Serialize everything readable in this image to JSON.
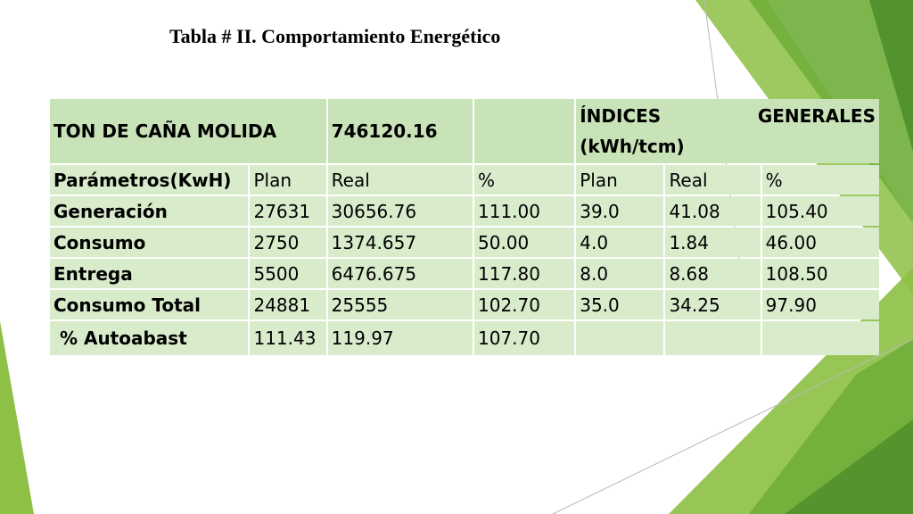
{
  "slide": {
    "title": "Tabla # II. Comportamiento Energético",
    "colors": {
      "accent_light": "#8dc044",
      "accent_mid": "#6fae3a",
      "accent_dark": "#4f8f2a",
      "cell_header": "#c8e3b7",
      "cell_body": "#d8eccc"
    }
  },
  "table": {
    "header": {
      "ton_label": "TON DE CAÑA MOLIDA",
      "ton_value": "746120.16",
      "empty": "",
      "indices_word1": "ÍNDICES",
      "indices_word2": "GENERALES",
      "indices_unit": "(kWh/tcm)"
    },
    "columns": [
      "Parámetros(KwH)",
      "Plan",
      "Real",
      "%",
      "Plan",
      "Real",
      "%"
    ],
    "rows": [
      [
        "Generación",
        "27631",
        "30656.76",
        "111.00",
        "39.0",
        "41.08",
        "105.40"
      ],
      [
        "Consumo",
        "2750",
        "1374.657",
        "50.00",
        "4.0",
        "1.84",
        "46.00"
      ],
      [
        "Entrega",
        "5500",
        "6476.675",
        "117.80",
        "8.0",
        "8.68",
        "108.50"
      ],
      [
        "Consumo Total",
        "24881",
        "25555",
        "102.70",
        "35.0",
        "34.25",
        "97.90"
      ],
      [
        " % Autoabast",
        "111.43",
        "119.97",
        "107.70",
        "",
        "",
        ""
      ]
    ]
  }
}
